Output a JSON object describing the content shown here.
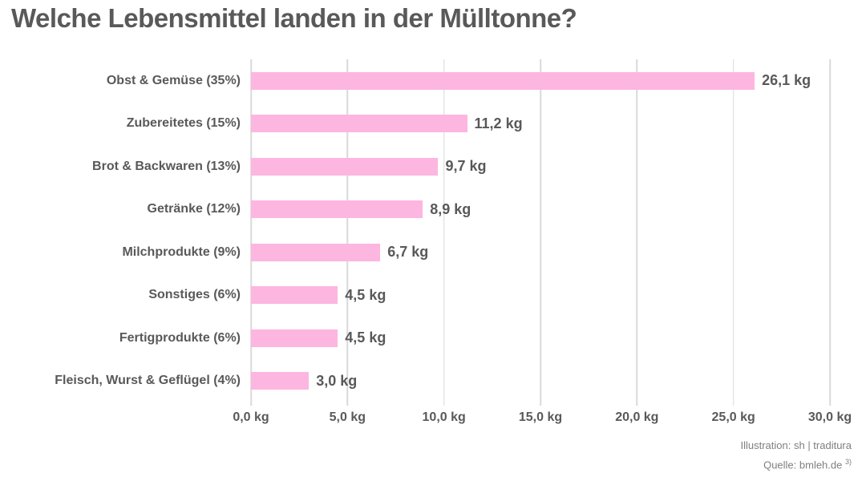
{
  "title": "Welche Lebensmittel landen in der Mülltonne?",
  "chart_data": {
    "type": "bar",
    "orientation": "horizontal",
    "title": "Welche Lebensmittel landen in der Mülltonne?",
    "categories": [
      "Obst & Gemüse (35%)",
      "Zubereitetes (15%)",
      "Brot & Backwaren (13%)",
      "Getränke (12%)",
      "Milchprodukte (9%)",
      "Sonstiges (6%)",
      "Fertigprodukte (6%)",
      "Fleisch, Wurst & Geflügel (4%)"
    ],
    "values": [
      26.1,
      11.2,
      9.7,
      8.9,
      6.7,
      4.5,
      4.5,
      3.0
    ],
    "value_labels": [
      "26,1 kg",
      "11,2 kg",
      "9,7 kg",
      "8,9 kg",
      "6,7 kg",
      "4,5 kg",
      "4,5 kg",
      "3,0 kg"
    ],
    "xlabel": "",
    "ylabel": "",
    "xlim": [
      0,
      30
    ],
    "x_ticks": [
      {
        "value": 0,
        "label": "0,0 kg"
      },
      {
        "value": 5,
        "label": "5,0 kg"
      },
      {
        "value": 10,
        "label": "10,0 kg"
      },
      {
        "value": 15,
        "label": "15,0 kg"
      },
      {
        "value": 20,
        "label": "20,0 kg"
      },
      {
        "value": 25,
        "label": "25,0 kg"
      },
      {
        "value": 30,
        "label": "30,0 kg"
      }
    ],
    "grid": "vertical-gridlines-only",
    "legend": "none",
    "colors": {
      "bar": "#FCB6DF",
      "gridline": "#D9D9D9",
      "text": "#595959",
      "footer_text": "#7F7F7F",
      "background": "#FFFFFF"
    }
  },
  "footer": {
    "illustration_credit": "Illustration: sh | traditura",
    "source": "Quelle: bmleh.de",
    "source_note_superscript": "3)"
  }
}
